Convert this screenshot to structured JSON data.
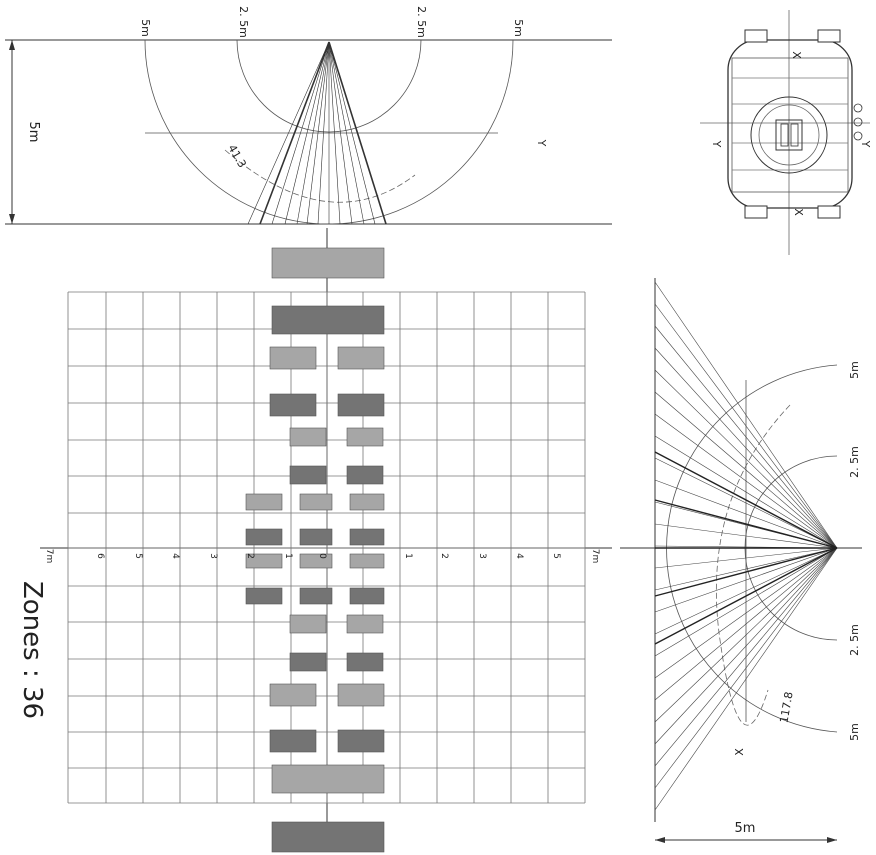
{
  "title_zones": "Zones : 36",
  "top_view": {
    "r5_left": "5m",
    "r25_left": "2. 5m",
    "r25_right": "2. 5m",
    "r5_right": "5m",
    "height_dim": "5m",
    "axis_y": "Y",
    "angle": "41.3"
  },
  "side_view": {
    "r5_top": "5m",
    "r25_top": "2. 5m",
    "r25_bot": "2. 5m",
    "r5_bot": "5m",
    "axis_x": "X",
    "angle": "117.8",
    "width_dim": "5m"
  },
  "sensor_view": {
    "x_top": "X",
    "x_bot": "X",
    "y_left": "Y",
    "y_right": "Y"
  },
  "grid": {
    "ticks_left": [
      "7m",
      "6",
      "5",
      "4",
      "3",
      "2",
      "1",
      "0"
    ],
    "ticks_right": [
      "1",
      "2",
      "3",
      "4",
      "5",
      "6",
      "7m"
    ]
  },
  "colors": {
    "zone_dark": "#747474",
    "zone_light": "#a6a6a6",
    "line": "#333333"
  }
}
